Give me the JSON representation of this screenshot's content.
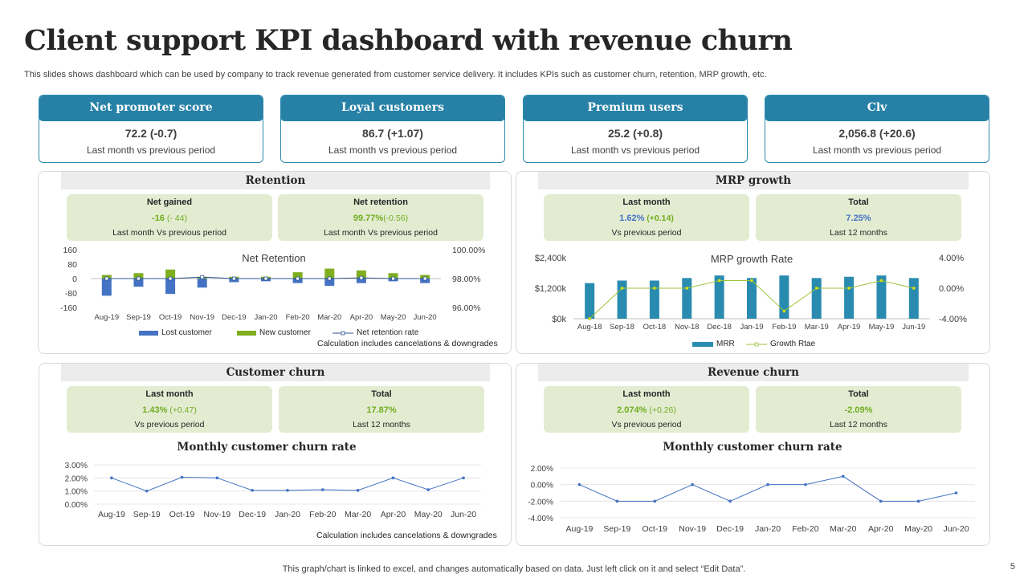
{
  "title": "Client support KPI dashboard with revenue churn",
  "subtitle": "This slides shows dashboard which can be used by company to track revenue generated from customer service delivery. It includes KPIs such as customer churn, retention, MRP growth, etc.",
  "kpis": [
    {
      "title": "Net promoter score",
      "value": "72.2 (-0.7)",
      "sub": "Last month vs previous  period"
    },
    {
      "title": "Loyal customers",
      "value": "86.7 (+1.07)",
      "sub": "Last month vs previous  period"
    },
    {
      "title": "Premium users",
      "value": "25.2 (+0.8)",
      "sub": "Last month vs previous  period"
    },
    {
      "title": "Clv",
      "value": "2,056.8 (+20.6)",
      "sub": "Last month vs previous  period"
    }
  ],
  "retention": {
    "title": "Retention",
    "box1": {
      "label": "Net gained",
      "value": "-16",
      "change": " (- 44)",
      "sub": "Last month  Vs previous period"
    },
    "box2": {
      "label": "Net retention",
      "value": "99.77%",
      "change": "(-0.56)",
      "sub": "Last month  Vs previous period"
    },
    "note": "Calculation includes cancelations & downgrades"
  },
  "mrp": {
    "title": "MRP growth",
    "box1": {
      "label": "Last month",
      "value": "1.62%",
      "change": " (+0.14)",
      "sub": "Vs previous period"
    },
    "box2": {
      "label": "Total",
      "value": "7.25%",
      "sub": "Last 12 months"
    }
  },
  "customer_churn": {
    "title": "Customer churn",
    "box1": {
      "label": "Last month",
      "value": "1.43%",
      "change": " (+0.47)",
      "sub": "Vs previous period"
    },
    "box2": {
      "label": "Total",
      "value": "17.87%",
      "sub": "Last 12 months"
    },
    "note": "Calculation includes cancelations & downgrades"
  },
  "revenue_churn": {
    "title": "Revenue churn",
    "box1": {
      "label": "Last month",
      "value": "2.074%",
      "change": " (+0.26)",
      "sub": "Vs previous period"
    },
    "box2": {
      "label": "Total",
      "value": "-2.09%",
      "sub": "Last 12 months"
    }
  },
  "footer": "This graph/chart is linked to excel,  and changes automatically based on data. Just left click on it and select “Edit Data”.",
  "page_number": "5",
  "colors": {
    "header": "#2781a6",
    "green_box": "#e3ecd1",
    "bar_blue": "#4472c4",
    "bar_green": "#7fae1e",
    "mrr_bar": "#2a8bb0",
    "growth_line": "#9dc23b",
    "churn_line": "#4472c4"
  },
  "chart_data": [
    {
      "id": "net_retention",
      "type": "bar",
      "title": "Net Retention",
      "categories": [
        "Aug-19",
        "Sep-19",
        "Oct-19",
        "Nov-19",
        "Dec-19",
        "Jan-20",
        "Feb-20",
        "Mar-20",
        "Apr-20",
        "May-20",
        "Jun-20"
      ],
      "series": [
        {
          "name": "Lost customer",
          "axis": "left",
          "values": [
            -95,
            -45,
            -85,
            -50,
            -20,
            -15,
            -25,
            -40,
            -25,
            -15,
            -25
          ]
        },
        {
          "name": "New customer",
          "axis": "left",
          "values": [
            20,
            30,
            50,
            10,
            10,
            10,
            35,
            55,
            45,
            30,
            20
          ]
        },
        {
          "name": "Net retention rate",
          "type": "line",
          "axis": "right",
          "values": [
            98.0,
            98.0,
            98.0,
            98.1,
            98.0,
            98.0,
            98.0,
            98.0,
            98.05,
            98.0,
            98.0
          ]
        }
      ],
      "y_left": {
        "ticks": [
          "160",
          "80",
          "0",
          "-80",
          "-160"
        ],
        "range": [
          -160,
          160
        ]
      },
      "y_right": {
        "ticks": [
          "100.00%",
          "98.00%",
          "96.00%"
        ],
        "range": [
          96,
          100
        ]
      }
    },
    {
      "id": "mrp_growth",
      "type": "bar",
      "title": "MRP growth Rate",
      "categories": [
        "Aug-18",
        "Sep-18",
        "Oct-18",
        "Nov-18",
        "Dec-18",
        "Jan-19",
        "Feb-19",
        "Mar-19",
        "Apr-19",
        "May-19",
        "Jun-19"
      ],
      "series": [
        {
          "name": "MRR",
          "axis": "left",
          "values": [
            1400,
            1500,
            1500,
            1600,
            1700,
            1600,
            1700,
            1600,
            1650,
            1700,
            1600
          ]
        },
        {
          "name": "Growth Rtae",
          "type": "line",
          "axis": "right",
          "values": [
            -4.0,
            0.0,
            0.0,
            0.0,
            1.0,
            1.0,
            -3.0,
            0.0,
            0.0,
            1.0,
            0.0
          ]
        }
      ],
      "y_left": {
        "ticks": [
          "$2,400k",
          "$1,200k",
          "$0k"
        ],
        "range": [
          0,
          2400
        ]
      },
      "y_right": {
        "ticks": [
          "4.00%",
          "0.00%",
          "-4.00%"
        ],
        "range": [
          -4,
          4
        ]
      }
    },
    {
      "id": "customer_churn_rate",
      "type": "line",
      "title": "Monthly customer churn rate",
      "categories": [
        "Aug-19",
        "Sep-19",
        "Oct-19",
        "Nov-19",
        "Dec-19",
        "Jan-20",
        "Feb-20",
        "Mar-20",
        "Apr-20",
        "May-20",
        "Jun-20"
      ],
      "series": [
        {
          "name": "Churn rate",
          "values": [
            2.0,
            1.0,
            2.05,
            2.0,
            1.05,
            1.05,
            1.1,
            1.05,
            2.0,
            1.1,
            2.0
          ]
        }
      ],
      "y": {
        "ticks": [
          "3.00%",
          "2.00%",
          "1.00%",
          "0.00%"
        ],
        "range": [
          0,
          3
        ]
      }
    },
    {
      "id": "revenue_churn_rate",
      "type": "line",
      "title": "Monthly customer churn rate",
      "categories": [
        "Aug-19",
        "Sep-19",
        "Oct-19",
        "Nov-19",
        "Dec-19",
        "Jan-20",
        "Feb-20",
        "Mar-20",
        "Apr-20",
        "May-20",
        "Jun-20"
      ],
      "series": [
        {
          "name": "Churn rate",
          "values": [
            0.0,
            -2.0,
            -2.0,
            0.0,
            -2.0,
            0.0,
            0.0,
            1.0,
            -2.0,
            -2.0,
            -1.0
          ]
        }
      ],
      "y": {
        "ticks": [
          "2.00%",
          "0.00%",
          "-2.00%",
          "-4.00%"
        ],
        "range": [
          -4,
          2
        ]
      }
    }
  ]
}
